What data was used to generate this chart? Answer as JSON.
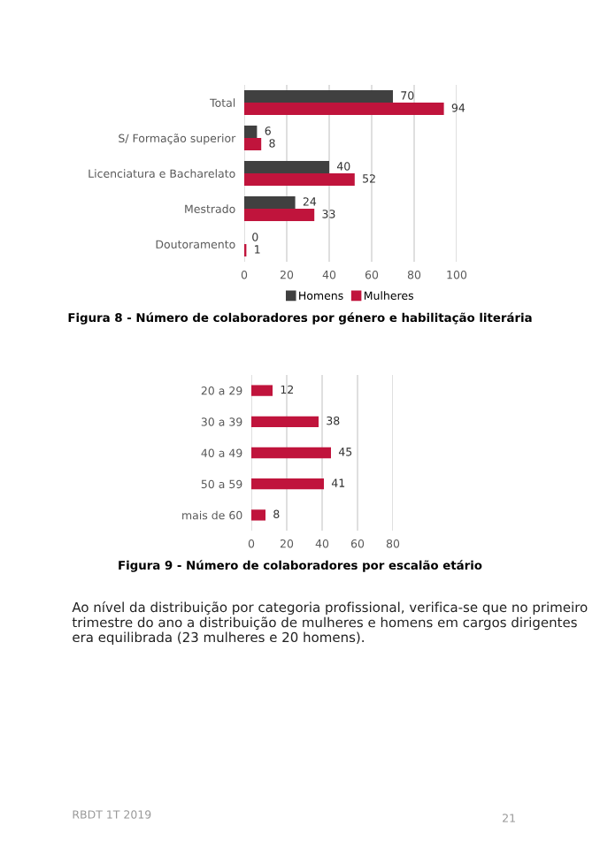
{
  "chart_data": [
    {
      "type": "bar",
      "orientation": "horizontal",
      "title": "Figura 8 - Número de colaboradores por género e habilitação literária",
      "categories": [
        "Total",
        "S/ Formação superior",
        "Licenciatura e Bacharelato",
        "Mestrado",
        "Doutoramento"
      ],
      "series": [
        {
          "name": "Homens",
          "color": "#404040",
          "values": [
            70,
            6,
            40,
            24,
            0
          ]
        },
        {
          "name": "Mulheres",
          "color": "#c0143c",
          "values": [
            94,
            8,
            52,
            33,
            1
          ]
        }
      ],
      "xlim": [
        0,
        100
      ],
      "xticks": [
        0,
        20,
        40,
        60,
        80,
        100
      ],
      "grid": "x",
      "legend": "bottom",
      "data_labels": true
    },
    {
      "type": "bar",
      "orientation": "horizontal",
      "title": "Figura 9 - Número de colaboradores por escalão etário",
      "categories": [
        "20 a 29",
        "30 a 39",
        "40 a 49",
        "50 a 59",
        "mais de 60"
      ],
      "series": [
        {
          "color": "#c0143c",
          "values": [
            12,
            38,
            45,
            41,
            8
          ]
        }
      ],
      "xlim": [
        0,
        80
      ],
      "xticks": [
        0,
        20,
        40,
        60,
        80
      ],
      "grid": "x",
      "data_labels": true,
      "annotations": [
        "Ao nível da distribuição por categoria profissional, verifica-se que no primeiro trimestre do ano a distribuição de mulheres e homens em cargos dirigentes era equilibrada (23 mulheres e 20 homens).",
        "RBDT 1T 2019",
        "21"
      ]
    }
  ]
}
